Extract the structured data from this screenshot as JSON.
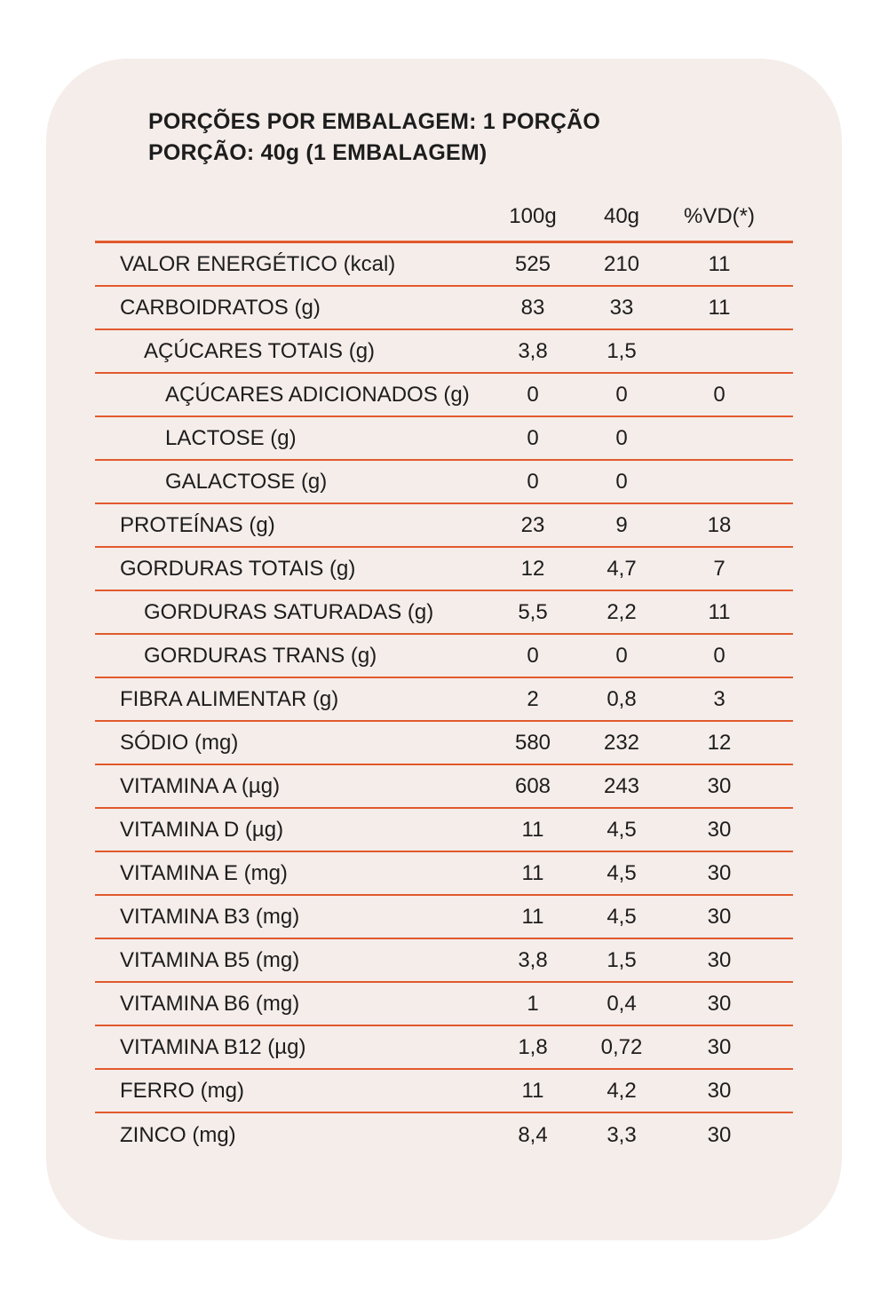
{
  "heading": {
    "line1": "PORÇÕES POR EMBALAGEM: 1 PORÇÃO",
    "line2": "PORÇÃO: 40g (1 EMBALAGEM)"
  },
  "table": {
    "columns": [
      "100g",
      "40g",
      "%VD(*)"
    ],
    "rows": [
      {
        "label": "VALOR ENERGÉTICO (kcal)",
        "indent": 0,
        "values": [
          "525",
          "210",
          "11"
        ]
      },
      {
        "label": "CARBOIDRATOS (g)",
        "indent": 0,
        "values": [
          "83",
          "33",
          "11"
        ]
      },
      {
        "label": "AÇÚCARES TOTAIS (g)",
        "indent": 1,
        "values": [
          "3,8",
          "1,5",
          ""
        ]
      },
      {
        "label": "AÇÚCARES ADICIONADOS (g)",
        "indent": 2,
        "values": [
          "0",
          "0",
          "0"
        ]
      },
      {
        "label": "LACTOSE (g)",
        "indent": 2,
        "values": [
          "0",
          "0",
          ""
        ]
      },
      {
        "label": "GALACTOSE (g)",
        "indent": 2,
        "values": [
          "0",
          "0",
          ""
        ]
      },
      {
        "label": "PROTEÍNAS (g)",
        "indent": 0,
        "values": [
          "23",
          "9",
          "18"
        ]
      },
      {
        "label": "GORDURAS TOTAIS (g)",
        "indent": 0,
        "values": [
          "12",
          "4,7",
          "7"
        ]
      },
      {
        "label": "GORDURAS SATURADAS (g)",
        "indent": 1,
        "values": [
          "5,5",
          "2,2",
          "11"
        ]
      },
      {
        "label": "GORDURAS TRANS (g)",
        "indent": 1,
        "values": [
          "0",
          "0",
          "0"
        ]
      },
      {
        "label": "FIBRA ALIMENTAR (g)",
        "indent": 0,
        "values": [
          "2",
          "0,8",
          "3"
        ]
      },
      {
        "label": "SÓDIO (mg)",
        "indent": 0,
        "values": [
          "580",
          "232",
          "12"
        ]
      },
      {
        "label": "VITAMINA A (µg)",
        "indent": 0,
        "values": [
          "608",
          "243",
          "30"
        ]
      },
      {
        "label": "VITAMINA D (µg)",
        "indent": 0,
        "values": [
          "11",
          "4,5",
          "30"
        ]
      },
      {
        "label": "VITAMINA E (mg)",
        "indent": 0,
        "values": [
          "11",
          "4,5",
          "30"
        ]
      },
      {
        "label": "VITAMINA B3 (mg)",
        "indent": 0,
        "values": [
          "11",
          "4,5",
          "30"
        ]
      },
      {
        "label": "VITAMINA B5 (mg)",
        "indent": 0,
        "values": [
          "3,8",
          "1,5",
          "30"
        ]
      },
      {
        "label": "VITAMINA B6 (mg)",
        "indent": 0,
        "values": [
          "1",
          "0,4",
          "30"
        ]
      },
      {
        "label": "VITAMINA B12 (µg)",
        "indent": 0,
        "values": [
          "1,8",
          "0,72",
          "30"
        ]
      },
      {
        "label": "FERRO (mg)",
        "indent": 0,
        "values": [
          "11",
          "4,2",
          "30"
        ]
      },
      {
        "label": "ZINCO (mg)",
        "indent": 0,
        "values": [
          "8,4",
          "3,3",
          "30"
        ]
      }
    ]
  },
  "colors": {
    "accent": "#e15a2d",
    "card_bg": "#f5edea",
    "text": "#1d1d1d",
    "page_bg": "#ffffff"
  }
}
